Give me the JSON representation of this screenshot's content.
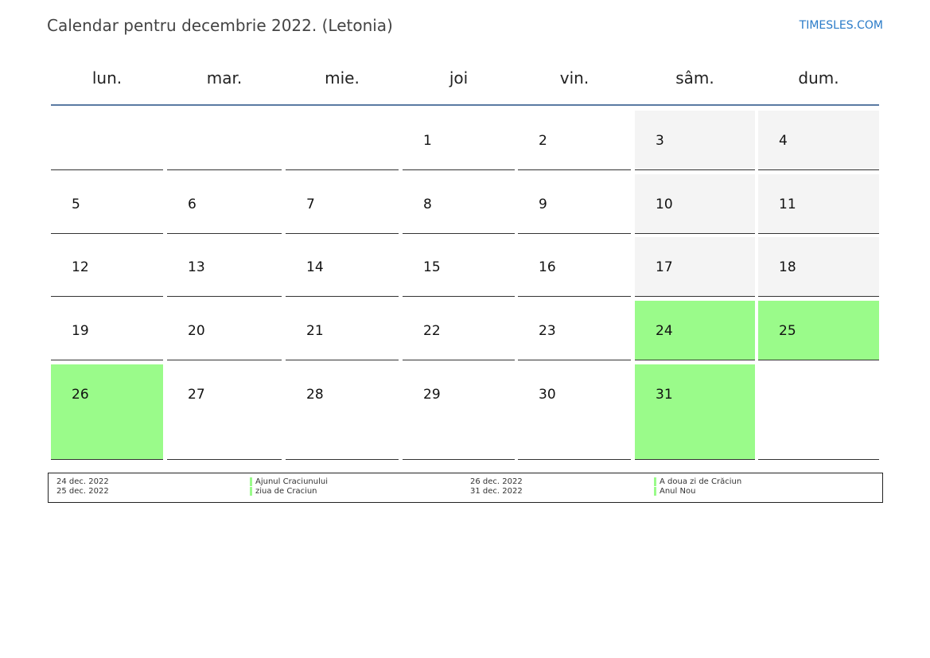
{
  "title": "Calendar pentru decembrie 2022. (Letonia)",
  "brand": "TIMESLES.COM",
  "colors": {
    "weekend": "#f4f4f4",
    "holiday": "#9afb8a",
    "header_line": "#5a7aa3",
    "brand": "#2a7bc8"
  },
  "weekdays": [
    "lun.",
    "mar.",
    "mie.",
    "joi",
    "vin.",
    "sâm.",
    "dum."
  ],
  "weeks": [
    [
      null,
      null,
      null,
      "1",
      "2",
      "3",
      "4"
    ],
    [
      "5",
      "6",
      "7",
      "8",
      "9",
      "10",
      "11"
    ],
    [
      "12",
      "13",
      "14",
      "15",
      "16",
      "17",
      "18"
    ],
    [
      "19",
      "20",
      "21",
      "22",
      "23",
      "24",
      "25"
    ],
    [
      "26",
      "27",
      "28",
      "29",
      "30",
      "31",
      null
    ]
  ],
  "holidays": [
    "24",
    "25",
    "26",
    "31"
  ],
  "legend": [
    {
      "date": "24 dec. 2022",
      "name": "Ajunul Craciunului"
    },
    {
      "date": "25 dec. 2022",
      "name": "ziua de Craciun"
    },
    {
      "date": "26 dec. 2022",
      "name": "A doua zi de Crăciun"
    },
    {
      "date": "31 dec. 2022",
      "name": "Anul Nou"
    }
  ]
}
